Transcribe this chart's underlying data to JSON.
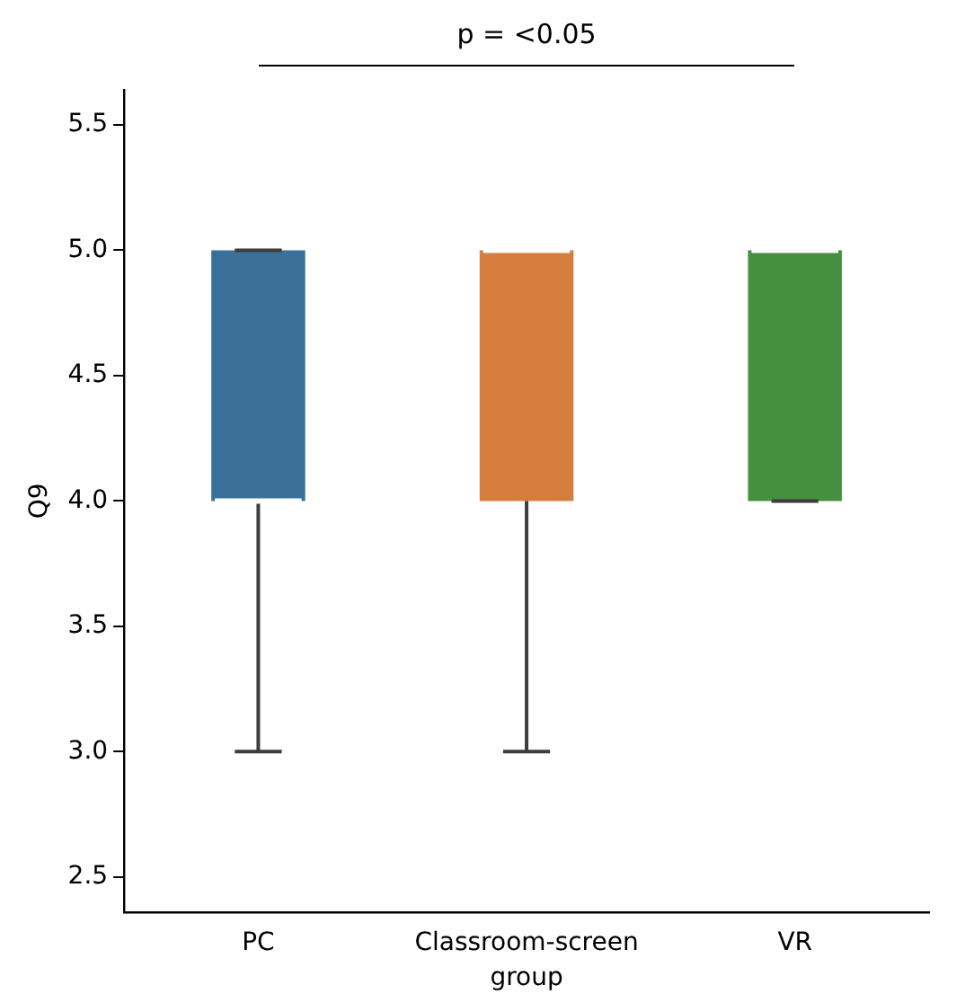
{
  "chart_data": {
    "type": "box",
    "xlabel": "group",
    "ylabel": "Q9",
    "annotations": [
      "p = <0.05"
    ],
    "categories": [
      "PC",
      "Classroom-screen",
      "VR"
    ],
    "colors": [
      "#3a7099",
      "#d57d3c",
      "#45903f"
    ],
    "boxes": [
      {
        "low": 3,
        "q1": 4,
        "median": 4,
        "q3": 5,
        "high": 5
      },
      {
        "low": 3,
        "q1": 4,
        "median": 5,
        "q3": 5,
        "high": 5
      },
      {
        "low": 4,
        "q1": 4,
        "median": 5,
        "q3": 5,
        "high": 5
      }
    ],
    "ylim": [
      2.36,
      5.64
    ],
    "yticks": [
      2.5,
      {
        "value": 3,
        "label": "3.0"
      },
      3.5,
      {
        "value": 4,
        "label": "4.0"
      },
      4.5,
      {
        "value": 5,
        "label": "5.0"
      },
      5.5
    ],
    "grid": false,
    "legend": false
  }
}
